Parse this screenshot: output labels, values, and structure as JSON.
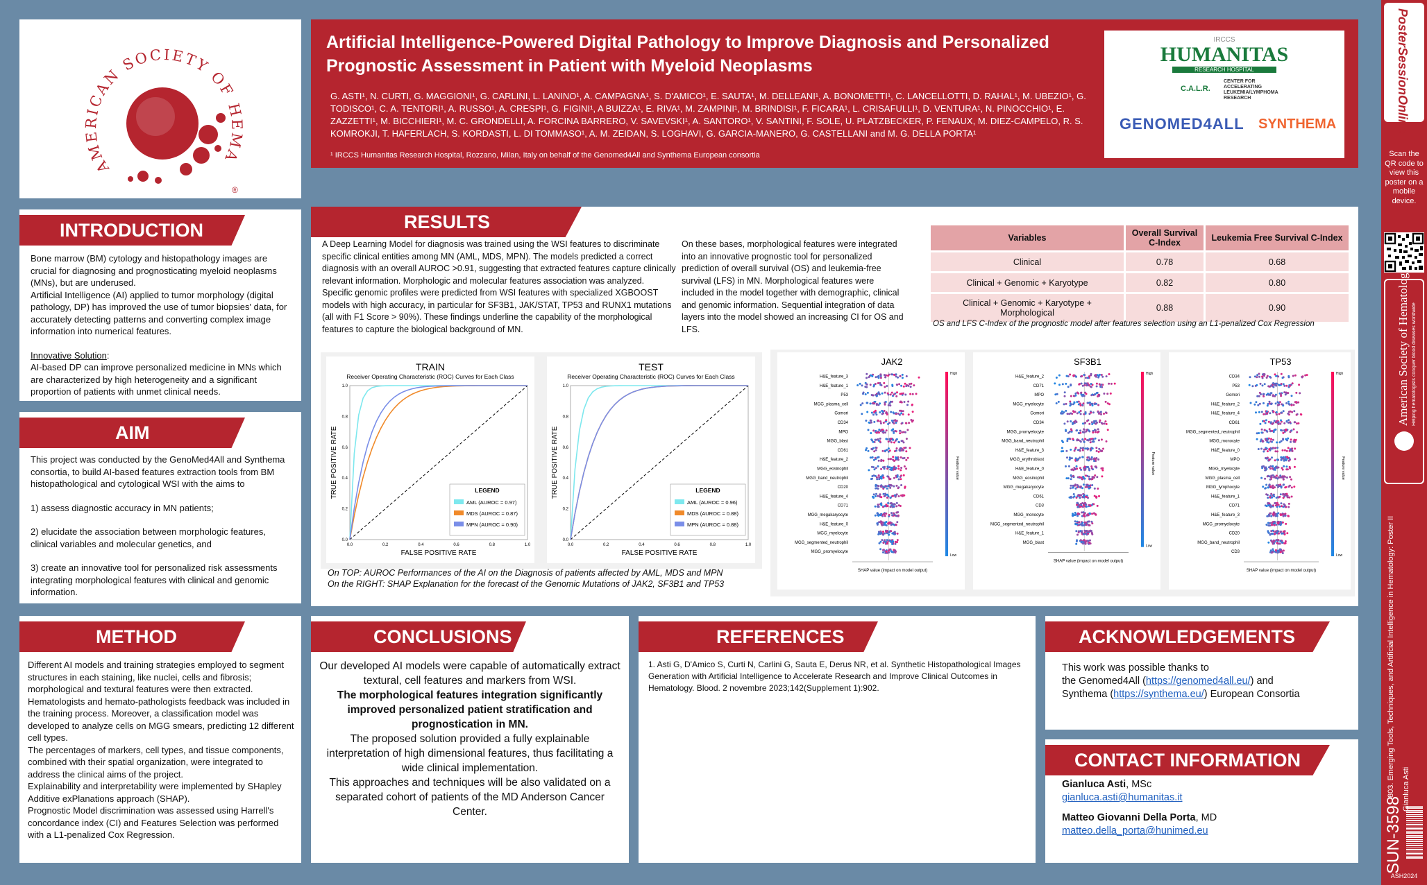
{
  "header": {
    "title_line1": "Artificial Intelligence-Powered Digital Pathology to Improve Diagnosis and Personalized",
    "title_line2": "Prognostic Assessment in Patient with Myeloid Neoplasms",
    "authors": "G. ASTI¹, N. CURTI, G. MAGGIONI¹, G. CARLINI, L. LANINO¹, A. CAMPAGNA¹, S. D'AMICO¹, E. SAUTA¹, M. DELLEANI¹, A. BONOMETTI¹, C. LANCELLOTTI, D. RAHAL¹, M. UBEZIO¹, G. TODISCO¹, C. A. TENTORI¹, A. RUSSO¹, A. CRESPI¹, G. FIGINI¹, A BUIZZA¹, E. RIVA¹, M. ZAMPINI¹, M. BRINDISI¹, F. FICARA¹, L. CRISAFULLI¹, D. VENTURA¹, N. PINOCCHIO¹, E. ZAZZETTI¹, M. BICCHIERI¹, M. C. GRONDELLI, A. FORCINA BARRERO, V. SAVEVSKI¹, A. SANTORO¹, V. SANTINI, F. SOLE, U. PLATZBECKER, P. FENAUX, M. DIEZ-CAMPELO, R. S. KOMROKJI, T. HAFERLACH, S. KORDASTI, L. DI TOMMASO¹, A. M. ZEIDAN, S. LOGHAVI, G. GARCIA-MANERO, G. CASTELLANI and M. G. DELLA PORTA¹",
    "affiliation": "¹ IRCCS Humanitas Research Hospital, Rozzano, Milan, Italy on behalf of the Genomed4All and Synthema European consortia"
  },
  "logos": {
    "ash_text": "AMERICAN SOCIETY OF HEMATOLOGY",
    "irccs": "IRCCS",
    "humanitas": "HUMANITAS",
    "humanitas_sub": "RESEARCH HOSPITAL",
    "calr": "C.A.L.R.",
    "calr_text": "CENTER FOR ACCELERATING LEUKEMIA/LYMPHOMA RESEARCH",
    "genomed": "GENOMED4ALL",
    "synthema": "SYNTHEMA"
  },
  "intro": {
    "title": "INTRODUCTION",
    "p1": "Bone marrow (BM) cytology and histopathology images are crucial for diagnosing and prognosticating myeloid neoplasms (MNs), but are underused.",
    "p2": "Artificial Intelligence (AI) applied to tumor morphology (digital pathology, DP) has improved the use of tumor biopsies' data, for accurately detecting patterns and converting complex image information into numerical features.",
    "innov_label": "Innovative Solution",
    "innov": "AI-based DP can improve personalized medicine in MNs which are characterized by high heterogeneity and a significant proportion of patients with unmet clinical needs."
  },
  "aim": {
    "title": "AIM",
    "p1": "This project was conducted by the GenoMed4All and Synthema consortia, to build AI-based features extraction tools from BM histopathological and cytological WSI with the aims to",
    "i1": "1) assess diagnostic accuracy in MN patients;",
    "i2": "2) elucidate the association between morphologic features, clinical variables and molecular genetics, and",
    "i3": "3) create an innovative tool for personalized risk assessments integrating morphological features with clinical and genomic information."
  },
  "results": {
    "title": "RESULTS",
    "col1": "A Deep Learning Model for diagnosis was trained using the WSI features to discriminate specific clinical entities among MN (AML, MDS, MPN). The models predicted a correct diagnosis with an overall AUROC >0.91, suggesting that extracted features capture clinically relevant information. Morphologic and molecular features association was analyzed. Specific genomic profiles were predicted from WSI features with specialized XGBOOST models with high accuracy, in particular for SF3B1, JAK/STAT, TP53 and RUNX1 mutations (all with F1 Score > 90%). These findings underline the capability of the morphological features to capture the biological background of MN.",
    "col2": "On these bases, morphological features were integrated into an innovative prognostic tool for personalized prediction of overall survival (OS) and leukemia-free survival (LFS) in MN. Morphological features were included in the model together with demographic, clinical and genomic information. Sequential integration of data layers into the model showed an increasing CI for OS and LFS.",
    "table_headers": [
      "Variables",
      "Overall Survival C-Index",
      "Leukemia Free Survival C-Index"
    ],
    "table_rows": [
      [
        "Clinical",
        "0.78",
        "0.68"
      ],
      [
        "Clinical + Genomic + Karyotype",
        "0.82",
        "0.80"
      ],
      [
        "Clinical + Genomic + Karyotype + Morphological",
        "0.88",
        "0.90"
      ]
    ],
    "table_caption": "OS and LFS C-Index of the prognostic model after features selection using an L1-penalized Cox Regression",
    "fig_caption1": "On TOP: AUROC Performances of the AI on the Diagnosis of patients affected by AML, MDS and MPN",
    "fig_caption2": "On the RIGHT: SHAP Explanation for the forecast of the Genomic Mutations of JAK2, SF3B1 and TP53"
  },
  "roc": [
    {
      "label": "TRAIN",
      "subtitle": "Receiver Operating Characteristic (ROC) Curves for Each Class",
      "xlabel": "FALSE POSITIVE RATE",
      "ylabel": "TRUE POSITIVE RATE",
      "legend_title": "LEGEND",
      "series": [
        {
          "name": "AML (AUROC = 0.97)",
          "color": "#7ee8ee",
          "auc": 0.97
        },
        {
          "name": "MDS (AUROC = 0.87)",
          "color": "#f08a2a",
          "auc": 0.87
        },
        {
          "name": "MPN (AUROC = 0.90)",
          "color": "#7a8ee8",
          "auc": 0.9
        }
      ]
    },
    {
      "label": "TEST",
      "subtitle": "Receiver Operating Characteristic (ROC) Curves for Each Class",
      "xlabel": "FALSE POSITIVE RATE",
      "ylabel": "TRUE POSITIVE RATE",
      "legend_title": "LEGEND",
      "series": [
        {
          "name": "AML (AUROC = 0.96)",
          "color": "#7ee8ee",
          "auc": 0.96
        },
        {
          "name": "MDS (AUROC = 0.88)",
          "color": "#f08a2a",
          "auc": 0.88
        },
        {
          "name": "MPN (AUROC = 0.88)",
          "color": "#7a8ee8",
          "auc": 0.88
        }
      ]
    }
  ],
  "roc_ticks": [
    "0.0",
    "0.2",
    "0.4",
    "0.6",
    "0.8",
    "1.0"
  ],
  "shap": [
    {
      "title": "JAK2",
      "xlabel": "SHAP value (impact on model output)",
      "features": [
        "H&E_feature_3",
        "H&E_feature_1",
        "P53",
        "MGG_plasma_cell",
        "Gomori",
        "CD34",
        "MPO",
        "MGG_blast",
        "CD61",
        "H&E_feature_2",
        "MGG_eosinophil",
        "MGG_band_neutrophil",
        "CD20",
        "H&E_feature_4",
        "CD71",
        "MGG_megakaryocyte",
        "H&E_feature_0",
        "MGG_myelocyte",
        "MGG_segmented_neutrophil",
        "MGG_promyelocyte"
      ]
    },
    {
      "title": "SF3B1",
      "xlabel": "SHAP value (impact on model output)",
      "features": [
        "H&E_feature_2",
        "CD71",
        "MPO",
        "MGG_myelocyte",
        "Gomori",
        "CD34",
        "MGG_promyelocyte",
        "MGG_band_neutrophil",
        "H&E_feature_3",
        "MGG_erythroblast",
        "H&E_feature_0",
        "MGG_eosinophil",
        "MGG_megakaryocyte",
        "CD61",
        "CD3",
        "MGG_monocyte",
        "MGG_segmented_neutrophil",
        "H&E_feature_1",
        "MGG_blast"
      ]
    },
    {
      "title": "TP53",
      "xlabel": "SHAP value (impact on model output)",
      "features": [
        "CD34",
        "P53",
        "Gomori",
        "H&E_feature_2",
        "H&E_feature_4",
        "CD61",
        "MGG_segmented_neutrophil",
        "MGG_monocyte",
        "H&E_feature_0",
        "MPO",
        "MGG_myelocyte",
        "MGG_plasma_cell",
        "MGG_lymphocyte",
        "H&E_feature_1",
        "CD71",
        "H&E_feature_3",
        "MGG_promyelocyte",
        "CD20",
        "MGG_band_neutrophil",
        "CD3"
      ]
    }
  ],
  "shap_colorbar": {
    "high": "High",
    "low": "Low",
    "label": "Feature value"
  },
  "method": {
    "title": "METHOD",
    "p1": "Different AI models and training strategies employed to segment structures in each staining, like nuclei, cells and fibrosis; morphological and textural features were then extracted.",
    "p2": "Hematologists and hemato-pathologists feedback was included in the training process. Moreover, a classification model was developed to analyze cells on MGG smears, predicting 12 different cell types.",
    "p3": "The percentages of markers, cell types, and tissue components, combined with their spatial organization, were integrated to address the clinical aims of the project.",
    "p4": "Explainability and interpretability were implemented by SHapley Additive exPlanations approach (SHAP).",
    "p5": "Prognostic Model discrimination was assessed using Harrell's concordance index (CI) and Features Selection was performed with a L1-penalized Cox Regression."
  },
  "conclusions": {
    "title": "CONCLUSIONS",
    "p1": "Our developed AI models were capable of automatically extract textural, cell features and markers from WSI.",
    "p2": "The morphological features integration significantly improved personalized patient stratification and prognostication in MN.",
    "p3": "The proposed solution provided a fully explainable interpretation of high dimensional features, thus facilitating a wide clinical implementation.",
    "p4": "This approaches and techniques will be also validated on a separated cohort of patients of the MD Anderson Cancer Center."
  },
  "references": {
    "title": "REFERENCES",
    "r1": "1.  Asti G, D'Amico S, Curti N, Carlini G, Sauta E, Derus NR, et al. Synthetic Histopathological Images Generation with Artificial Intelligence to Accelerate Research and Improve Clinical Outcomes in Hematology. Blood. 2 novembre 2023;142(Supplement 1):902."
  },
  "ack": {
    "title": "ACKNOWLEDGEMENTS",
    "l1": "This work was possible thanks to",
    "l2a": "the Genomed4All (",
    "link1": "https://genomed4all.eu/",
    "l2b": ") and",
    "l3a": "Synthema (",
    "link2": "https://synthema.eu/",
    "l3b": ") European Consortia"
  },
  "contact": {
    "title": "CONTACT INFORMATION",
    "n1": "Gianluca Asti",
    "d1": ", MSc",
    "e1": "gianluca.asti@humanitas.it",
    "n2": "Matteo Giovanni Della Porta",
    "d2": ", MD",
    "e2": "matteo.della_porta@hunimed.eu"
  },
  "sidebar": {
    "brand": "PosterSessionOnline",
    "scan": "Scan the QR code to view this poster on a mobile device.",
    "ash_vertical": "American Society of Hematology",
    "ash_sub": "Helping hematologists conquer blood diseases worldwide",
    "session": "803. Emerging Tools, Techniques, and Artificial Intelligence in Hematology: Poster II",
    "presenter": "Gianluca Asti",
    "code": "SUN-3598",
    "year": "ASH2024"
  },
  "colors": {
    "brand_red": "#b5252f",
    "bg": "#6a8aa6",
    "table_head": "#e3a3a6",
    "table_cell": "#f7dcdc"
  }
}
